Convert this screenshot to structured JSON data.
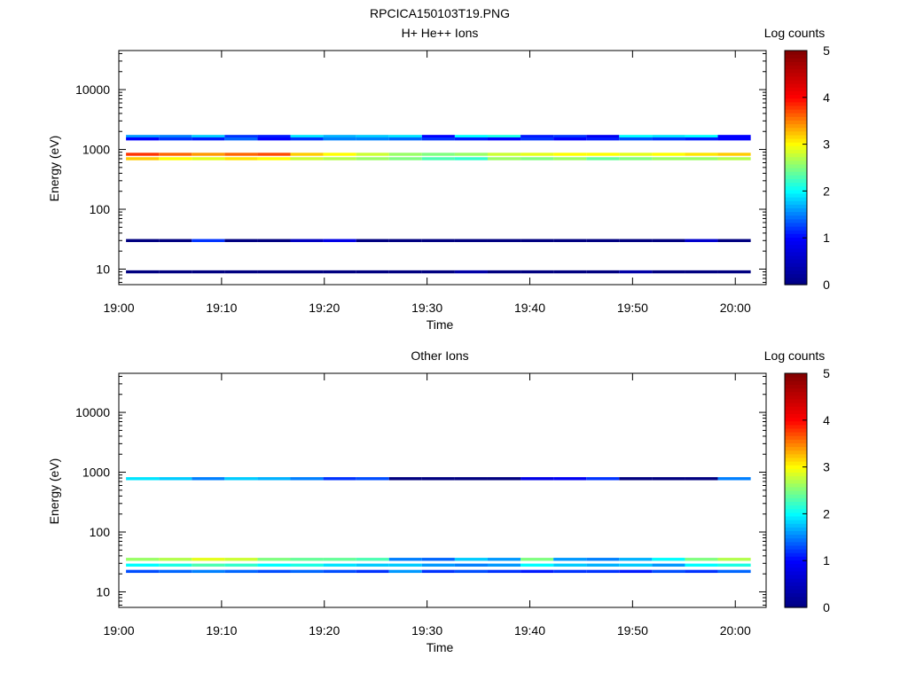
{
  "page_title": "RPCICA150103T19.PNG",
  "chart_data": [
    {
      "type": "heatmap",
      "title": "H+ He++ Ions",
      "xlabel": "Time",
      "ylabel": "Energy (eV)",
      "colorbar_label": "Log counts",
      "x_ticks": [
        "19:00",
        "19:10",
        "19:20",
        "19:30",
        "19:40",
        "19:50",
        "20:00"
      ],
      "x_range_minutes": [
        0,
        63
      ],
      "y_scale": "log",
      "y_ticks": [
        "10",
        "100",
        "1000",
        "10000"
      ],
      "y_tick_values": [
        10,
        100,
        1000,
        10000
      ],
      "y_range": [
        5.5,
        45000
      ],
      "colorbar_ticks": [
        "0",
        "1",
        "2",
        "3",
        "4",
        "5"
      ],
      "colorbar_range": [
        0,
        5
      ],
      "colormap": [
        "#000080",
        "#0000ff",
        "#00ffff",
        "#ffff00",
        "#ff0000",
        "#800000"
      ],
      "time_bins_minutes": [
        2.3,
        5.5,
        8.7,
        11.9,
        15.1,
        18.3,
        21.5,
        24.7,
        27.9,
        31.1,
        34.3,
        37.5,
        40.7,
        43.9,
        47.1,
        50.3,
        53.5,
        56.7,
        59.9
      ],
      "series": [
        {
          "energy": 830,
          "log_counts": [
            3.8,
            3.6,
            3.4,
            3.6,
            3.7,
            3.2,
            3.0,
            2.8,
            2.6,
            2.5,
            2.6,
            2.8,
            2.9,
            3.0,
            3.0,
            2.9,
            3.0,
            3.1,
            3.2
          ]
        },
        {
          "energy": 700,
          "log_counts": [
            3.2,
            3.0,
            2.9,
            3.1,
            3.0,
            2.8,
            2.7,
            2.6,
            2.5,
            2.3,
            2.2,
            2.6,
            2.5,
            2.6,
            2.4,
            2.5,
            2.6,
            2.6,
            2.7
          ]
        },
        {
          "energy": 1650,
          "log_counts": [
            1.6,
            1.5,
            1.8,
            1.2,
            1.1,
            1.9,
            1.7,
            1.8,
            1.9,
            1.0,
            2.0,
            2.1,
            1.1,
            1.2,
            0.9,
            2.0,
            1.9,
            2.0,
            1.0
          ]
        },
        {
          "energy": 1500,
          "log_counts": [
            1.0,
            1.2,
            1.1,
            1.4,
            1.0,
            1.2,
            1.5,
            1.5,
            1.4,
            1.2,
            1.1,
            1.0,
            1.2,
            1.0,
            1.1,
            1.3,
            1.2,
            1.1,
            1.0
          ]
        },
        {
          "energy": 30,
          "log_counts": [
            0,
            0,
            1.2,
            0,
            0,
            0.5,
            0.8,
            0,
            0,
            0,
            0,
            0,
            0,
            0,
            0,
            0,
            0,
            0.6,
            0
          ]
        },
        {
          "energy": 9,
          "log_counts": [
            0,
            0,
            0,
            0,
            0,
            0,
            0,
            0,
            0,
            0,
            0.3,
            0,
            0,
            0,
            0,
            0.3,
            0,
            0,
            0
          ]
        }
      ]
    },
    {
      "type": "heatmap",
      "title": "Other Ions",
      "xlabel": "Time",
      "ylabel": "Energy (eV)",
      "colorbar_label": "Log counts",
      "x_ticks": [
        "19:00",
        "19:10",
        "19:20",
        "19:30",
        "19:40",
        "19:50",
        "20:00"
      ],
      "x_range_minutes": [
        0,
        63
      ],
      "y_scale": "log",
      "y_ticks": [
        "10",
        "100",
        "1000",
        "10000"
      ],
      "y_tick_values": [
        10,
        100,
        1000,
        10000
      ],
      "y_range": [
        5.5,
        45000
      ],
      "colorbar_ticks": [
        "0",
        "1",
        "2",
        "3",
        "4",
        "5"
      ],
      "colorbar_range": [
        0,
        5
      ],
      "colormap": [
        "#000080",
        "#0000ff",
        "#00ffff",
        "#ffff00",
        "#ff0000",
        "#800000"
      ],
      "time_bins_minutes": [
        2.3,
        5.5,
        8.7,
        11.9,
        15.1,
        18.3,
        21.5,
        24.7,
        27.9,
        31.1,
        34.3,
        37.5,
        40.7,
        43.9,
        47.1,
        50.3,
        53.5,
        56.7,
        59.9
      ],
      "series": [
        {
          "energy": 35,
          "log_counts": [
            2.6,
            2.7,
            2.9,
            2.8,
            2.5,
            2.4,
            2.4,
            2.3,
            1.5,
            1.4,
            1.8,
            1.6,
            2.5,
            1.6,
            1.5,
            1.7,
            2.0,
            2.5,
            2.7
          ]
        },
        {
          "energy": 28,
          "log_counts": [
            2.0,
            2.1,
            2.3,
            2.2,
            2.0,
            2.1,
            1.9,
            1.8,
            1.8,
            1.6,
            1.5,
            1.6,
            2.0,
            1.8,
            1.7,
            1.8,
            1.6,
            2.0,
            2.1
          ]
        },
        {
          "energy": 22,
          "log_counts": [
            1.3,
            1.4,
            1.5,
            1.4,
            1.3,
            1.4,
            1.3,
            1.2,
            1.6,
            1.2,
            1.3,
            1.2,
            1.1,
            1.2,
            1.2,
            1.1,
            1.3,
            1.2,
            1.4
          ]
        },
        {
          "energy": 780,
          "log_counts": [
            1.9,
            1.8,
            1.5,
            1.8,
            1.7,
            1.5,
            1.2,
            1.3,
            0,
            0,
            0,
            0,
            0.8,
            0.9,
            1.2,
            0,
            0,
            0,
            1.5
          ]
        }
      ]
    }
  ]
}
